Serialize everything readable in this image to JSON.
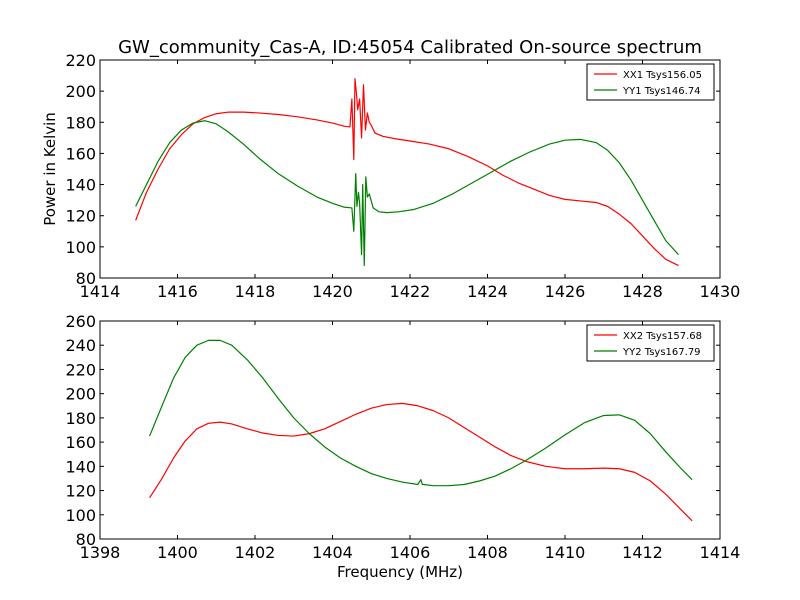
{
  "title": "GW_community_Cas-A, ID:45054 Calibrated On-source spectrum",
  "chart_data": [
    {
      "type": "line",
      "xlabel": "",
      "ylabel": "Power in Kelvin",
      "xlim": [
        1414,
        1430
      ],
      "ylim": [
        80,
        220
      ],
      "xticks": [
        "1414",
        "1416",
        "1418",
        "1420",
        "1422",
        "1424",
        "1426",
        "1428",
        "1430"
      ],
      "yticks": [
        "80",
        "100",
        "120",
        "140",
        "160",
        "180",
        "200",
        "220"
      ],
      "grid": false,
      "legend_position": "top-right",
      "series": [
        {
          "name": "XX1 Tsys156.05",
          "color": "#ff0000",
          "x": [
            1414.92,
            1415.2,
            1415.5,
            1415.8,
            1416.1,
            1416.4,
            1416.7,
            1417.0,
            1417.3,
            1417.7,
            1418.1,
            1418.6,
            1419.1,
            1419.6,
            1420.0,
            1420.3,
            1420.45,
            1420.5,
            1420.55,
            1420.58,
            1420.62,
            1420.65,
            1420.7,
            1420.75,
            1420.8,
            1420.85,
            1420.9,
            1420.95,
            1421.0,
            1421.1,
            1421.3,
            1421.6,
            1422.0,
            1422.5,
            1423.0,
            1423.5,
            1424.0,
            1424.4,
            1424.8,
            1425.2,
            1425.6,
            1426.0,
            1426.4,
            1426.8,
            1427.1,
            1427.4,
            1427.7,
            1428.0,
            1428.3,
            1428.6,
            1428.93
          ],
          "values": [
            117,
            135,
            150,
            163,
            172,
            179,
            183,
            185.5,
            186.5,
            186.5,
            186,
            185,
            183.5,
            181.5,
            179.5,
            177.5,
            177,
            195,
            156,
            208,
            198,
            188,
            195,
            170,
            204,
            175,
            186,
            180,
            178,
            173,
            171,
            169.5,
            168,
            166,
            163,
            158,
            152,
            146,
            141,
            137,
            133,
            130.5,
            129.5,
            128.5,
            126,
            121,
            115,
            107,
            99,
            92,
            88
          ]
        },
        {
          "name": "YY1 Tsys146.74",
          "color": "#008000",
          "x": [
            1414.92,
            1415.2,
            1415.5,
            1415.8,
            1416.1,
            1416.4,
            1416.7,
            1417.0,
            1417.3,
            1417.7,
            1418.1,
            1418.6,
            1419.1,
            1419.6,
            1420.0,
            1420.3,
            1420.5,
            1420.55,
            1420.6,
            1420.63,
            1420.67,
            1420.7,
            1420.75,
            1420.78,
            1420.82,
            1420.86,
            1420.9,
            1420.95,
            1421.05,
            1421.2,
            1421.4,
            1421.7,
            1422.1,
            1422.6,
            1423.1,
            1423.6,
            1424.1,
            1424.6,
            1425.1,
            1425.6,
            1426.0,
            1426.4,
            1426.8,
            1427.1,
            1427.4,
            1427.7,
            1428.0,
            1428.3,
            1428.6,
            1428.93
          ],
          "values": [
            126,
            140,
            155,
            167,
            175,
            179.5,
            181,
            179,
            174,
            166,
            157,
            147,
            139,
            132,
            128,
            125.5,
            125,
            110,
            147,
            126,
            135,
            128,
            95,
            140,
            88,
            145,
            132,
            134,
            125,
            122.5,
            122,
            122.5,
            124,
            128,
            134,
            141,
            148,
            155,
            161,
            166,
            168.5,
            169,
            167,
            162,
            154,
            143,
            130,
            117,
            104,
            95
          ]
        }
      ]
    },
    {
      "type": "line",
      "xlabel": "Frequency (MHz)",
      "ylabel": "",
      "xlim": [
        1398,
        1414
      ],
      "ylim": [
        80,
        260
      ],
      "xticks": [
        "1398",
        "1400",
        "1402",
        "1404",
        "1406",
        "1408",
        "1410",
        "1412",
        "1414"
      ],
      "yticks": [
        "80",
        "100",
        "120",
        "140",
        "160",
        "180",
        "200",
        "220",
        "240",
        "260"
      ],
      "grid": false,
      "legend_position": "top-right",
      "series": [
        {
          "name": "XX2 Tsys157.68",
          "color": "#ff0000",
          "x": [
            1399.28,
            1399.6,
            1399.9,
            1400.2,
            1400.5,
            1400.8,
            1401.1,
            1401.4,
            1401.8,
            1402.2,
            1402.6,
            1403.0,
            1403.4,
            1403.8,
            1404.2,
            1404.6,
            1405.0,
            1405.4,
            1405.8,
            1406.2,
            1406.6,
            1407.0,
            1407.4,
            1407.8,
            1408.2,
            1408.6,
            1409.0,
            1409.5,
            1410.0,
            1410.5,
            1411.0,
            1411.4,
            1411.8,
            1412.2,
            1412.6,
            1413.0,
            1413.28
          ],
          "values": [
            114,
            130,
            147,
            161,
            171,
            175.5,
            176.5,
            175,
            171,
            167.5,
            165.5,
            165,
            167,
            171,
            177,
            183,
            188,
            191,
            192,
            190,
            186,
            180,
            172,
            164,
            156,
            149,
            144,
            140,
            138,
            138,
            138.5,
            138,
            135,
            128,
            117,
            104,
            95
          ]
        },
        {
          "name": "YY2 Tsys167.79",
          "color": "#008000",
          "x": [
            1399.28,
            1399.6,
            1399.9,
            1400.2,
            1400.5,
            1400.8,
            1401.1,
            1401.4,
            1401.8,
            1402.2,
            1402.6,
            1403.0,
            1403.4,
            1403.8,
            1404.2,
            1404.6,
            1405.0,
            1405.4,
            1405.8,
            1406.2,
            1406.28,
            1406.32,
            1406.36,
            1406.6,
            1407.0,
            1407.4,
            1407.8,
            1408.2,
            1408.6,
            1409.0,
            1409.5,
            1410.0,
            1410.5,
            1411.0,
            1411.4,
            1411.8,
            1412.2,
            1412.6,
            1413.0,
            1413.28
          ],
          "values": [
            165,
            190,
            213,
            230,
            240,
            244,
            244,
            240,
            228,
            213,
            196,
            180,
            167,
            156,
            147,
            140,
            134,
            130,
            127,
            125,
            129,
            125,
            125,
            124,
            124,
            125,
            128,
            132,
            138,
            145,
            155,
            166,
            176,
            182,
            182.5,
            178,
            167,
            152,
            138,
            129
          ]
        }
      ]
    }
  ]
}
